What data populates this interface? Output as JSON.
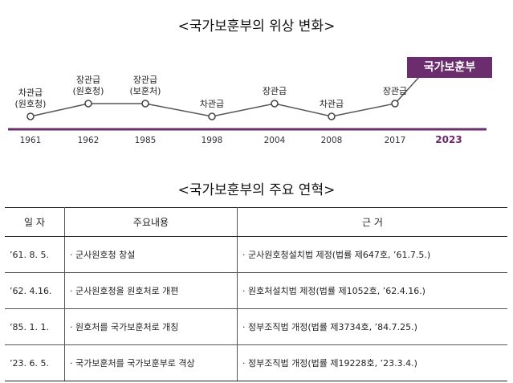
{
  "titles": {
    "status_change": "<국가보훈부의 위상 변화>",
    "history": "<국가보훈부의 주요 연혁>"
  },
  "timeline": {
    "points": [
      {
        "year": "1961",
        "label": "차관급\n(원호청)",
        "level": "low"
      },
      {
        "year": "1962",
        "label": "장관급\n(원호청)",
        "level": "high"
      },
      {
        "year": "1985",
        "label": "장관급\n(보훈처)",
        "level": "high"
      },
      {
        "year": "1998",
        "label": "차관급",
        "level": "low"
      },
      {
        "year": "2004",
        "label": "장관급",
        "level": "high"
      },
      {
        "year": "2008",
        "label": "차관급",
        "level": "low"
      },
      {
        "year": "2017",
        "label": "장관급",
        "level": "high"
      }
    ],
    "current": {
      "year": "2023",
      "label": "국가보훈부"
    },
    "colors": {
      "line": "#555555",
      "baseline": "#6b2d6d",
      "badge": "#6b2d6d"
    }
  },
  "table": {
    "headers": {
      "date": "일 자",
      "content": "주요내용",
      "basis": "근 거"
    },
    "rows": [
      {
        "date": "’61. 8. 5.",
        "content": "· 군사원호청 창설",
        "basis": "· 군사원호청설치법 제정(법률 제647호, ’61.7.5.)"
      },
      {
        "date": "’62. 4.16.",
        "content": "· 군사원호청을 원호처로 개편",
        "basis": "· 원호처설치법 제정(법률 제1052호, ’62.4.16.)"
      },
      {
        "date": "’85. 1. 1.",
        "content": "· 원호처를 국가보훈처로 개칭",
        "basis": "· 정부조직법 개정(법률 제3734호, ’84.7.25.)"
      },
      {
        "date": "’23. 6. 5.",
        "content": "· 국가보훈처를 국가보훈부로 격상",
        "basis": "· 정부조직법 개정(법률 제19228호, ’23.3.4.)"
      }
    ]
  }
}
